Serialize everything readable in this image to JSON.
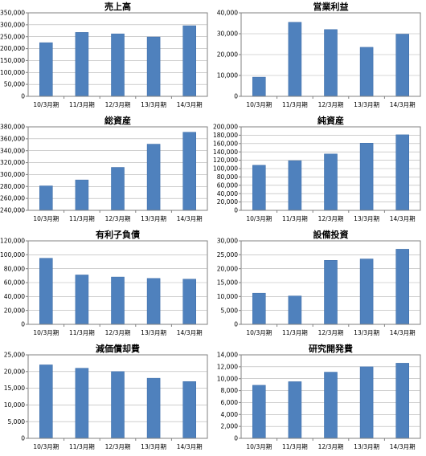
{
  "chart_data": [
    {
      "type": "bar",
      "title": "売上高",
      "categories": [
        "10/3月期",
        "11/3月期",
        "12/3月期",
        "13/3月期",
        "14/3月期"
      ],
      "values": [
        225000,
        268000,
        262000,
        249000,
        296000
      ],
      "ylim": [
        0,
        350000
      ],
      "yticks": [
        "0",
        "50,000",
        "100,000",
        "150,000",
        "200,000",
        "250,000",
        "300,000",
        "350,000"
      ],
      "grid": true,
      "color": "#4f81bd"
    },
    {
      "type": "bar",
      "title": "営業利益",
      "categories": [
        "10/3月期",
        "11/3月期",
        "12/3月期",
        "13/3月期",
        "14/3月期"
      ],
      "values": [
        9200,
        35500,
        32000,
        23500,
        29800
      ],
      "ylim": [
        0,
        40000
      ],
      "yticks": [
        "0",
        "10,000",
        "20,000",
        "30,000",
        "40,000"
      ],
      "grid": true,
      "color": "#4f81bd"
    },
    {
      "type": "bar",
      "title": "総資産",
      "categories": [
        "10/3月期",
        "11/3月期",
        "12/3月期",
        "13/3月期",
        "14/3月期"
      ],
      "values": [
        281000,
        291000,
        312000,
        351000,
        371000
      ],
      "ylim": [
        240000,
        380000
      ],
      "yticks": [
        "240,000",
        "260,000",
        "280,000",
        "300,000",
        "320,000",
        "340,000",
        "360,000",
        "380,000"
      ],
      "grid": true,
      "color": "#4f81bd"
    },
    {
      "type": "bar",
      "title": "純資産",
      "categories": [
        "10/3月期",
        "11/3月期",
        "12/3月期",
        "13/3月期",
        "14/3月期"
      ],
      "values": [
        108000,
        119000,
        135000,
        161000,
        181000
      ],
      "ylim": [
        0,
        200000
      ],
      "yticks": [
        "0",
        "20,000",
        "40,000",
        "60,000",
        "80,000",
        "100,000",
        "120,000",
        "140,000",
        "160,000",
        "180,000",
        "200,000"
      ],
      "grid": true,
      "color": "#4f81bd"
    },
    {
      "type": "bar",
      "title": "有利子負債",
      "categories": [
        "10/3月期",
        "11/3月期",
        "12/3月期",
        "13/3月期",
        "14/3月期"
      ],
      "values": [
        95000,
        71000,
        68000,
        66000,
        65000
      ],
      "ylim": [
        0,
        120000
      ],
      "yticks": [
        "0",
        "20,000",
        "40,000",
        "60,000",
        "80,000",
        "100,000",
        "120,000"
      ],
      "grid": true,
      "color": "#4f81bd"
    },
    {
      "type": "bar",
      "title": "設備投資",
      "categories": [
        "10/3月期",
        "11/3月期",
        "12/3月期",
        "13/3月期",
        "14/3月期"
      ],
      "values": [
        11200,
        10200,
        23000,
        23500,
        27000
      ],
      "ylim": [
        0,
        30000
      ],
      "yticks": [
        "0",
        "5,000",
        "10,000",
        "15,000",
        "20,000",
        "25,000",
        "30,000"
      ],
      "grid": true,
      "color": "#4f81bd"
    },
    {
      "type": "bar",
      "title": "減価償却費",
      "categories": [
        "10/3月期",
        "11/3月期",
        "12/3月期",
        "13/3月期",
        "14/3月期"
      ],
      "values": [
        22000,
        21000,
        20000,
        18000,
        17000
      ],
      "ylim": [
        0,
        25000
      ],
      "yticks": [
        "0",
        "5,000",
        "10,000",
        "15,000",
        "20,000",
        "25,000"
      ],
      "grid": true,
      "color": "#4f81bd"
    },
    {
      "type": "bar",
      "title": "研究開発費",
      "categories": [
        "10/3月期",
        "11/3月期",
        "12/3月期",
        "13/3月期",
        "14/3月期"
      ],
      "values": [
        8900,
        9500,
        11100,
        12000,
        12600
      ],
      "ylim": [
        0,
        14000
      ],
      "yticks": [
        "0",
        "2,000",
        "4,000",
        "6,000",
        "8,000",
        "10,000",
        "12,000",
        "14,000"
      ],
      "grid": true,
      "color": "#4f81bd"
    }
  ]
}
